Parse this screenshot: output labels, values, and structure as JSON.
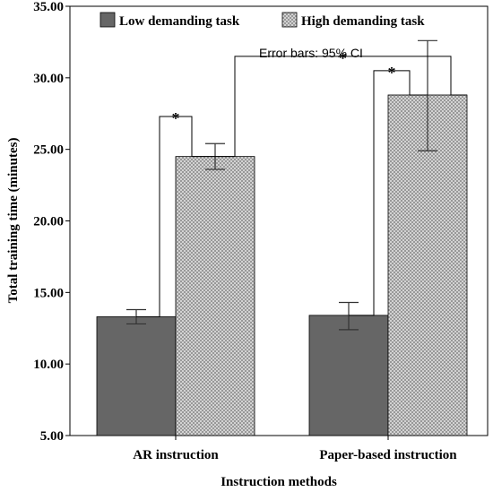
{
  "chart_data": {
    "type": "bar",
    "title": "",
    "xlabel": "Instruction methods",
    "ylabel": "Total training time (minutes)",
    "ylim": [
      5,
      35
    ],
    "yticks": [
      "5.00",
      "10.00",
      "15.00",
      "20.00",
      "25.00",
      "30.00",
      "35.00"
    ],
    "grid": false,
    "legend_position": "top",
    "categories": [
      "AR instruction",
      "Paper-based instruction"
    ],
    "series": [
      {
        "name": "Low demanding task",
        "color": "#666666",
        "pattern": "solid",
        "values": [
          13.3,
          13.4
        ],
        "ci_low": [
          12.8,
          12.4
        ],
        "ci_high": [
          13.8,
          14.3
        ]
      },
      {
        "name": "High demanding task",
        "color": "#cfcfcf",
        "pattern": "crosshatch",
        "values": [
          24.5,
          28.8
        ],
        "ci_low": [
          23.6,
          24.9
        ],
        "ci_high": [
          25.4,
          32.6
        ]
      }
    ],
    "annotations": {
      "error_note": "Error bars: 95% CI",
      "significance": [
        {
          "between": "AR instruction: Low vs High",
          "label": "*"
        },
        {
          "between": "Paper-based instruction: Low vs High",
          "label": "*"
        },
        {
          "between": "High demanding task: AR vs Paper-based",
          "label": "*"
        }
      ]
    }
  }
}
